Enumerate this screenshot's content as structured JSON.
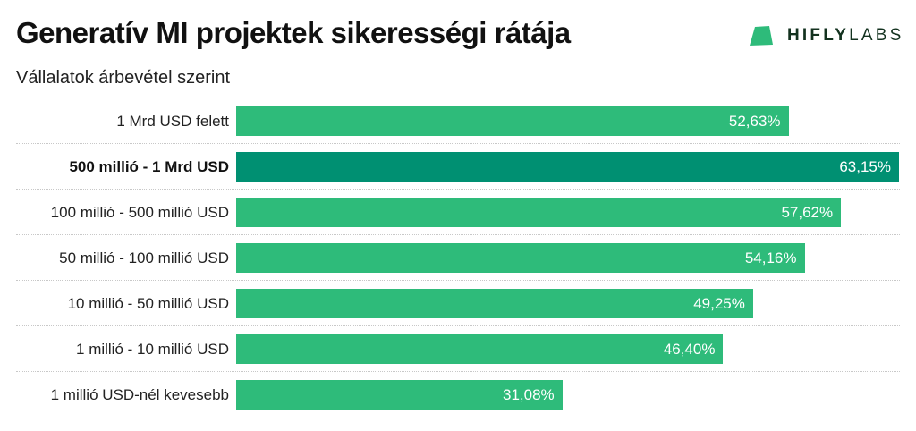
{
  "header": {
    "title": "Generatív MI projektek sikerességi rátája",
    "subtitle": "Vállalatok árbevétel szerint"
  },
  "logo": {
    "bold_text": "HIFLY",
    "light_text": "LABS",
    "color": "#2ebb7a"
  },
  "colors": {
    "bar_default": "#2ebb7a",
    "bar_highlight": "#009072",
    "value_text": "#ffffff"
  },
  "chart_data": {
    "type": "bar",
    "orientation": "horizontal",
    "title": "Generatív MI projektek sikerességi rátája",
    "subtitle": "Vállalatok árbevétel szerint",
    "xlabel": "",
    "ylabel": "",
    "categories": [
      "1 Mrd USD felett",
      "500 millió - 1 Mrd USD",
      "100 millió - 500 millió USD",
      "50 millió - 100 millió USD",
      "10 millió - 50 millió USD",
      "1 millió - 10 millió USD",
      "1 millió USD-nél kevesebb"
    ],
    "values": [
      52.63,
      63.15,
      57.62,
      54.16,
      49.25,
      46.4,
      31.08
    ],
    "value_labels": [
      "52,63%",
      "63,15%",
      "57,62%",
      "54,16%",
      "49,25%",
      "46,40%",
      "31,08%"
    ],
    "highlighted_index": 1,
    "xlim": [
      0,
      63.15
    ],
    "grid": false,
    "legend": "none",
    "data_labels": "inside-end"
  }
}
